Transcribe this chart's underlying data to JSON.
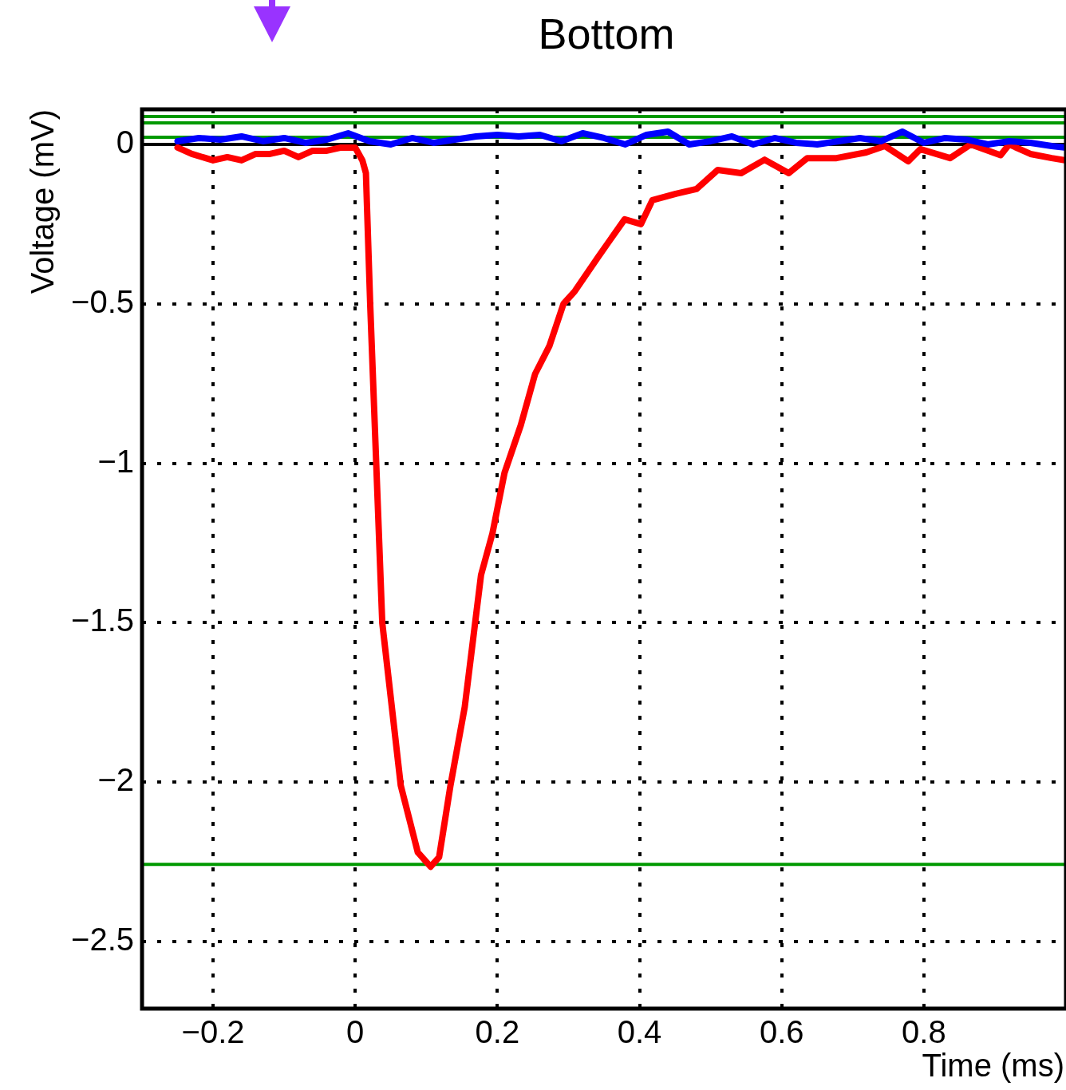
{
  "chart_data": {
    "type": "line",
    "title": "Bottom",
    "xlabel": "Time (ms)",
    "ylabel": "Voltage (mV)",
    "xlim": [
      -0.3,
      1.0
    ],
    "xticks": [
      -0.2,
      0,
      0.2,
      0.4,
      0.6,
      0.8
    ],
    "ylim": [
      -2.71,
      0.11
    ],
    "yticks": [
      -2.5,
      -2,
      -1.5,
      -1,
      -0.5,
      0
    ],
    "grid": true,
    "line_style": "solid",
    "marker": "none",
    "ref_lines": [
      {
        "axis": "y",
        "value": 0,
        "color": "#000000"
      },
      {
        "axis": "y",
        "value": 0.0875,
        "color": "#009900"
      },
      {
        "axis": "y",
        "value": 0.0675,
        "color": "#009900"
      },
      {
        "axis": "y",
        "value": 0.0225,
        "color": "#009900"
      },
      {
        "axis": "y",
        "value": -2.2575,
        "color": "#009900"
      }
    ],
    "series": [
      {
        "color": "#0000ff",
        "x": [
          -0.25,
          -0.22,
          -0.19,
          -0.16,
          -0.13,
          -0.1,
          -0.07,
          -0.04,
          -0.01,
          0.02,
          0.05,
          0.08,
          0.11,
          0.14,
          0.17,
          0.2,
          0.23,
          0.26,
          0.29,
          0.32,
          0.35,
          0.38,
          0.41,
          0.44,
          0.47,
          0.5,
          0.53,
          0.56,
          0.59,
          0.62,
          0.65,
          0.68,
          0.71,
          0.74,
          0.77,
          0.8,
          0.83,
          0.86,
          0.89,
          0.92,
          0.95,
          0.98,
          1.0
        ],
        "values": [
          0.01,
          0.02,
          0.015,
          0.025,
          0.01,
          0.02,
          0.005,
          0.015,
          0.035,
          0.01,
          0.0,
          0.02,
          0.005,
          0.015,
          0.025,
          0.03,
          0.025,
          0.03,
          0.01,
          0.035,
          0.02,
          0.0,
          0.03,
          0.04,
          0.0,
          0.01,
          0.025,
          0.0,
          0.02,
          0.005,
          0.0,
          0.01,
          0.02,
          0.01,
          0.04,
          0.005,
          0.02,
          0.015,
          0.0,
          0.01,
          0.005,
          -0.005,
          -0.01
        ]
      },
      {
        "color": "#ff0000",
        "x": [
          -0.25,
          -0.23,
          -0.2,
          -0.18,
          -0.16,
          -0.14,
          -0.12,
          -0.1,
          -0.08,
          -0.06,
          -0.04,
          -0.02,
          0,
          0.01,
          0.015,
          0.021,
          0.038,
          0.064,
          0.088,
          0.106,
          0.118,
          0.134,
          0.154,
          0.177,
          0.193,
          0.21,
          0.233,
          0.253,
          0.273,
          0.293,
          0.309,
          0.342,
          0.379,
          0.402,
          0.418,
          0.451,
          0.48,
          0.51,
          0.543,
          0.576,
          0.61,
          0.636,
          0.677,
          0.719,
          0.745,
          0.778,
          0.795,
          0.837,
          0.866,
          0.908,
          0.92,
          0.95,
          0.98,
          1.0
        ],
        "values": [
          -0.01,
          -0.03,
          -0.05,
          -0.04,
          -0.05,
          -0.03,
          -0.03,
          -0.02,
          -0.04,
          -0.02,
          -0.02,
          -0.01,
          -0.01,
          -0.05,
          -0.09,
          -0.5,
          -1.5,
          -2.01,
          -2.22,
          -2.265,
          -2.235,
          -2.01,
          -1.765,
          -1.35,
          -1.22,
          -1.03,
          -0.88,
          -0.72,
          -0.633,
          -0.5,
          -0.46,
          -0.352,
          -0.235,
          -0.25,
          -0.175,
          -0.155,
          -0.14,
          -0.08,
          -0.09,
          -0.048,
          -0.09,
          -0.043,
          -0.043,
          -0.025,
          -0.005,
          -0.053,
          -0.015,
          -0.043,
          0.0,
          -0.034,
          0.0,
          -0.03,
          -0.043,
          -0.05
        ]
      }
    ]
  }
}
